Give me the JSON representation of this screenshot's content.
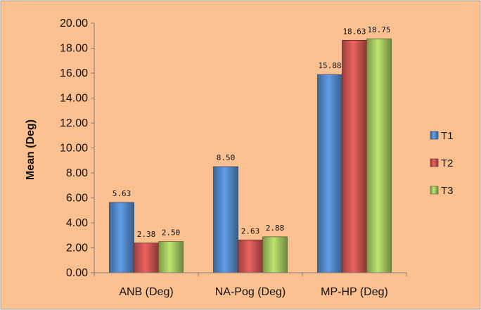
{
  "chart_data": {
    "type": "bar",
    "title": "",
    "xlabel": "",
    "ylabel": "Mean (Deg)",
    "categories": [
      "ANB (Deg)",
      "NA-Pog (Deg)",
      "MP-HP (Deg)"
    ],
    "series": [
      {
        "name": "T1",
        "values": [
          5.63,
          8.5,
          15.88
        ],
        "labels": [
          "5.63",
          "8.50",
          "15.88"
        ]
      },
      {
        "name": "T2",
        "values": [
          2.38,
          2.63,
          18.63
        ],
        "labels": [
          "2.38",
          "2.63",
          "18.63"
        ]
      },
      {
        "name": "T3",
        "values": [
          2.5,
          2.88,
          18.75
        ],
        "labels": [
          "2.50",
          "2.88",
          "18.75"
        ]
      }
    ],
    "ylim": [
      0,
      20
    ],
    "yticks": [
      "0.00",
      "2.00",
      "4.00",
      "6.00",
      "8.00",
      "10.00",
      "12.00",
      "14.00",
      "16.00",
      "18.00",
      "20.00"
    ],
    "grid": false,
    "legend_position": "right",
    "colors": {
      "background": "#fac090",
      "border": "#9e9e9e",
      "T1": "#4f81bd",
      "T2": "#c0504d",
      "T3": "#9bbb59"
    }
  }
}
